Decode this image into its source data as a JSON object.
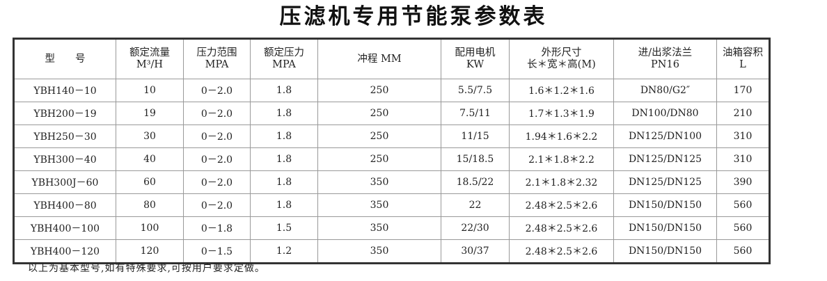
{
  "title": "压滤机专用节能泵参数表",
  "headers": [
    {
      "l1": "型　　号",
      "l2": ""
    },
    {
      "l1": "额定流量",
      "l2": "M³/H"
    },
    {
      "l1": "压力范围",
      "l2": "MPA"
    },
    {
      "l1": "额定压力",
      "l2": "MPA"
    },
    {
      "l1": "冲程 MM",
      "l2": ""
    },
    {
      "l1": "配用电机",
      "l2": "KW"
    },
    {
      "l1": "外形尺寸",
      "l2": "长＊宽＊高(M)"
    },
    {
      "l1": "进/出浆法兰",
      "l2": "PN16"
    },
    {
      "l1": "油箱容积",
      "l2": "L"
    }
  ],
  "rows": [
    [
      "YBH140－10",
      "10",
      "0－2.0",
      "1.8",
      "250",
      "5.5/7.5",
      "1.6＊1.2＊1.6",
      "DN80/G2″",
      "170"
    ],
    [
      "YBH200－19",
      "19",
      "0－2.0",
      "1.8",
      "250",
      "7.5/11",
      "1.7＊1.3＊1.9",
      "DN100/DN80",
      "210"
    ],
    [
      "YBH250－30",
      "30",
      "0－2.0",
      "1.8",
      "250",
      "11/15",
      "1.94＊1.6＊2.2",
      "DN125/DN100",
      "310"
    ],
    [
      "YBH300－40",
      "40",
      "0－2.0",
      "1.8",
      "250",
      "15/18.5",
      "2.1＊1.8＊2.2",
      "DN125/DN125",
      "310"
    ],
    [
      "YBH300J－60",
      "60",
      "0－2.0",
      "1.8",
      "350",
      "18.5/22",
      "2.1＊1.8＊2.32",
      "DN125/DN125",
      "390"
    ],
    [
      "YBH400－80",
      "80",
      "0－2.0",
      "1.8",
      "350",
      "22",
      "2.48＊2.5＊2.6",
      "DN150/DN150",
      "560"
    ],
    [
      "YBH400－100",
      "100",
      "0－1.8",
      "1.5",
      "350",
      "22/30",
      "2.48＊2.5＊2.6",
      "DN150/DN150",
      "560"
    ],
    [
      "YBH400－120",
      "120",
      "0－1.5",
      "1.2",
      "350",
      "30/37",
      "2.48＊2.5＊2.6",
      "DN150/DN150",
      "560"
    ]
  ],
  "footnote": "以上为基本型号,如有特殊要求,可按用户要求定做。"
}
